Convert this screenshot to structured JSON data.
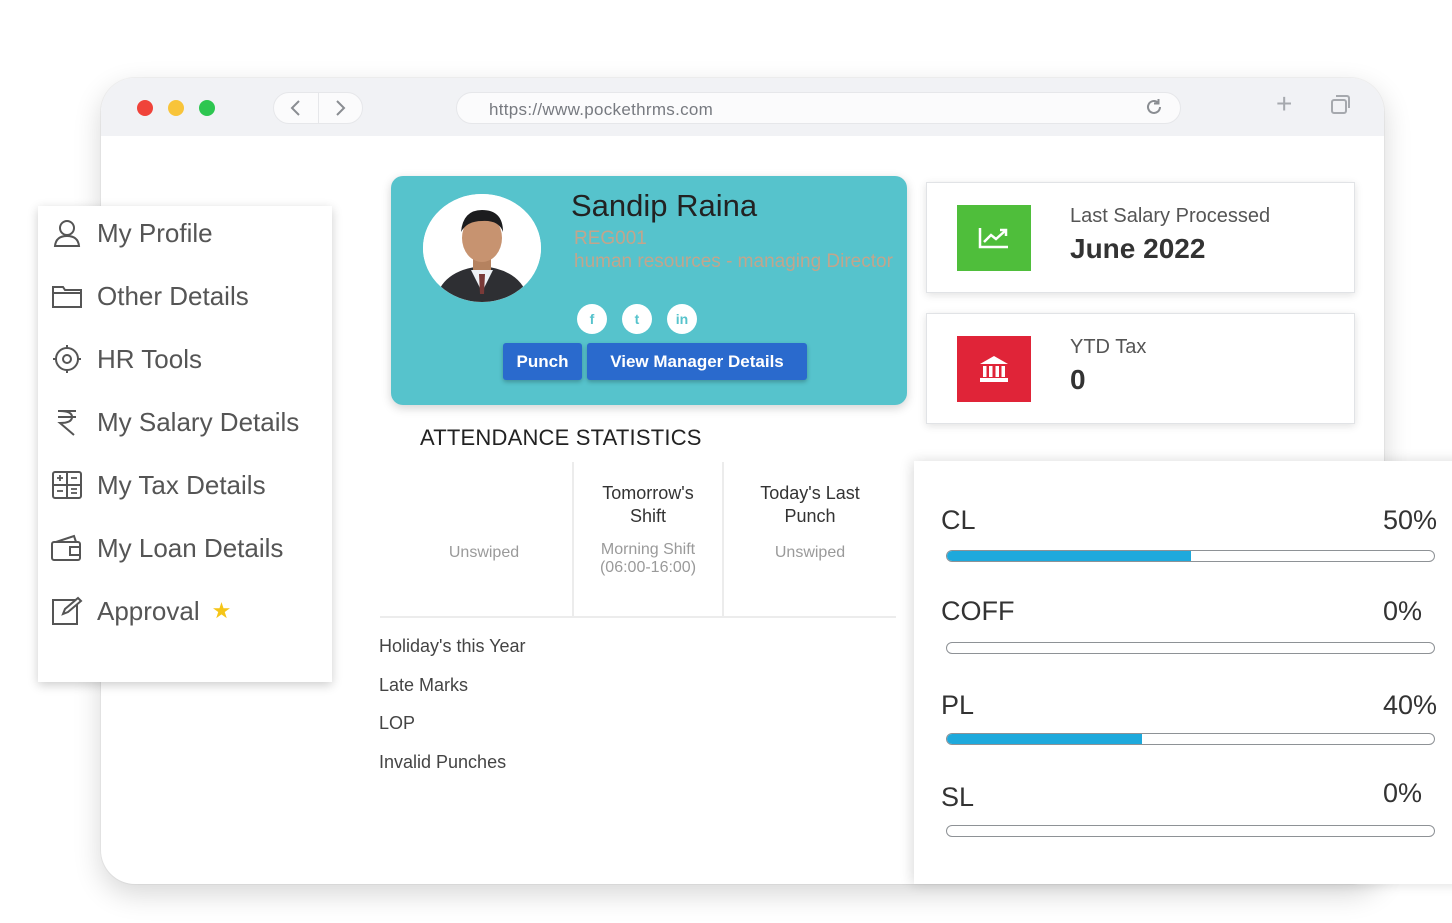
{
  "browser": {
    "url": "https://www.pockethrms.com",
    "traffic_lights": {
      "red": "#f0433a",
      "yellow": "#f8c43a",
      "green": "#2dc650"
    },
    "nav_icons": [
      "chevron-left-icon",
      "chevron-right-icon",
      "reload-icon",
      "new-tab-icon",
      "tabs-icon"
    ]
  },
  "sidebar": {
    "items": [
      {
        "label": "My Profile",
        "icon": "user-icon"
      },
      {
        "label": "Other Details",
        "icon": "folder-icon"
      },
      {
        "label": "HR Tools",
        "icon": "hr-tools-icon"
      },
      {
        "label": "My Salary Details",
        "icon": "rupee-icon"
      },
      {
        "label": "My Tax Details",
        "icon": "calculator-icon"
      },
      {
        "label": "My Loan Details",
        "icon": "wallet-icon"
      },
      {
        "label": "Approval",
        "icon": "edit-icon",
        "badge_icon": "star-icon"
      }
    ]
  },
  "profile": {
    "name": "Sandip Raina",
    "code": "REG001",
    "designation": "human resources - managing Director",
    "socials": [
      {
        "name": "facebook-icon",
        "glyph": "f"
      },
      {
        "name": "twitter-icon",
        "glyph": "t"
      },
      {
        "name": "linkedin-icon",
        "glyph": "in"
      }
    ],
    "punch_label": "Punch",
    "manager_label": "View Manager Details",
    "card_color": "#56c3cc",
    "button_color": "#2a6acd"
  },
  "stats": [
    {
      "label": "Last Salary Processed",
      "value": "June 2022",
      "icon": "chart-line-icon",
      "color": "#4fbe3b"
    },
    {
      "label": "YTD Tax",
      "value": "0",
      "icon": "bank-icon",
      "color": "#e02438"
    }
  ],
  "attendance": {
    "title": "ATTENDANCE STATISTICS",
    "columns": [
      {
        "header": "",
        "value": "Unswiped"
      },
      {
        "header": "Tomorrow's Shift",
        "value": "Morning Shift (06:00-16:00)"
      },
      {
        "header": "Today's Last Punch",
        "value": "Unswiped"
      }
    ],
    "rows": [
      "Holiday's this Year",
      "Late Marks",
      "LOP",
      "Invalid Punches"
    ]
  },
  "leaves": [
    {
      "code": "CL",
      "percent_label": "50%",
      "percent": 50
    },
    {
      "code": "COFF",
      "percent_label": "0%",
      "percent": 0
    },
    {
      "code": "PL",
      "percent_label": "40%",
      "percent": 40
    },
    {
      "code": "SL",
      "percent_label": "0%",
      "percent": 0
    }
  ],
  "leave_bar_color": "#1ea9dc"
}
